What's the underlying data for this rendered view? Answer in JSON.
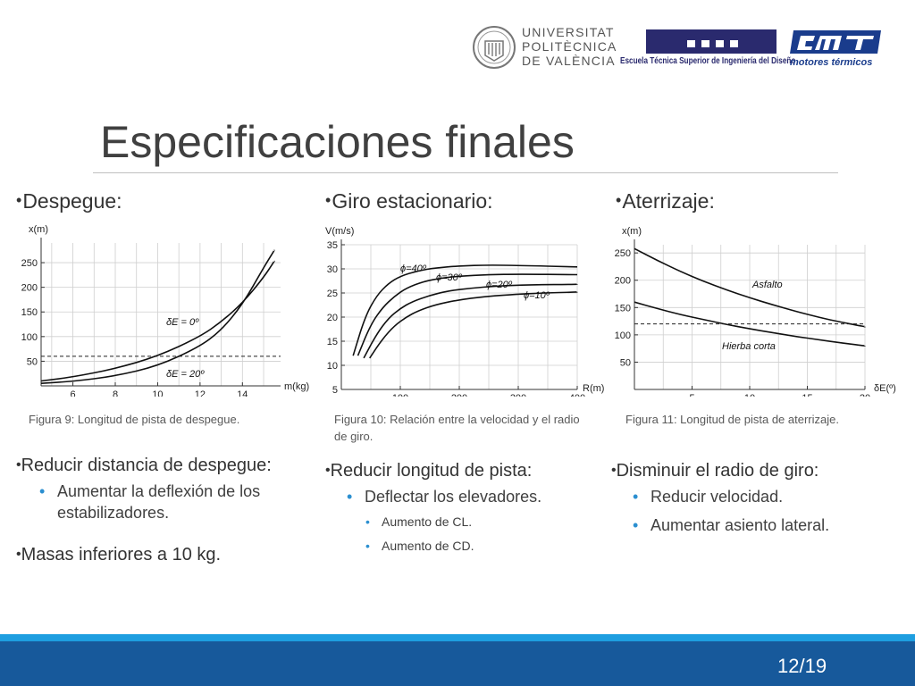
{
  "header": {
    "upv_lines": [
      "UNIVERSITAT",
      "POLITÈCNICA",
      "DE VALÈNCIA"
    ],
    "etsid_text": "Escuela Técnica Superior de Ingeniería del Diseño",
    "cmt_text": "motores térmicos"
  },
  "title": "Especificaciones finales",
  "sections": {
    "despegue": {
      "heading": "Despegue:",
      "caption": "Figura 9: Longitud de pista de despegue.",
      "bullets": [
        {
          "text": "Reducir distancia de despegue:",
          "sub": [
            "Aumentar la deflexión de los estabilizadores."
          ]
        },
        {
          "text": "Masas inferiores a 10 kg."
        }
      ]
    },
    "giro": {
      "heading": "Giro estacionario:",
      "caption": "Figura 10: Relación entre la velocidad y el radio de giro.",
      "bullets": [
        {
          "text": "Reducir longitud de pista:",
          "sub": [
            "Deflectar los elevadores."
          ],
          "subsub": [
            "Aumento de CL.",
            "Aumento de CD."
          ]
        }
      ]
    },
    "aterrizaje": {
      "heading": "Aterrizaje:",
      "caption": "Figura 11: Longitud de pista de aterrizaje.",
      "bullets": [
        {
          "text": "Disminuir el radio de giro:",
          "sub": [
            "Reducir velocidad.",
            "Aumentar asiento lateral."
          ]
        }
      ]
    }
  },
  "chart_data": [
    {
      "type": "line",
      "ylabel": "x(m)",
      "xlabel": "m(kg)",
      "xlim": [
        4.5,
        15.8
      ],
      "ylim": [
        0,
        290
      ],
      "xticks": [
        "6",
        "8",
        "10",
        "12",
        "14"
      ],
      "yticks": [
        "50",
        "100",
        "150",
        "200",
        "250"
      ],
      "grid": true,
      "series": [
        {
          "name": "δE = 0º",
          "x": [
            4.5,
            6,
            8,
            10,
            12,
            13,
            14,
            15,
            15.5
          ],
          "values": [
            10,
            18,
            35,
            60,
            100,
            130,
            168,
            220,
            253
          ]
        },
        {
          "name": "δE = 20º",
          "x": [
            4.5,
            6,
            8,
            10,
            12,
            13,
            14,
            15,
            15.5
          ],
          "values": [
            5,
            9,
            20,
            40,
            80,
            113,
            165,
            240,
            275
          ]
        }
      ],
      "reference_line": {
        "y": 60,
        "style": "dashed"
      }
    },
    {
      "type": "line",
      "ylabel": "V(m/s)",
      "xlabel": "R(m)",
      "xlim": [
        0,
        400
      ],
      "ylim": [
        5,
        35
      ],
      "xticks": [
        "100",
        "200",
        "300",
        "400"
      ],
      "yticks": [
        "5",
        "10",
        "15",
        "20",
        "25",
        "30",
        "35"
      ],
      "grid": true,
      "series": [
        {
          "name": "ϕ=40º",
          "x": [
            20,
            40,
            60,
            80,
            100,
            130,
            160,
            200,
            250,
            300,
            400
          ],
          "values": [
            12,
            20,
            24.5,
            27,
            28.5,
            29.6,
            30.2,
            30.6,
            30.8,
            30.7,
            30.4
          ]
        },
        {
          "name": "ϕ=30º",
          "x": [
            28,
            50,
            70,
            90,
            110,
            140,
            170,
            200,
            250,
            300,
            400
          ],
          "values": [
            12,
            18.5,
            22,
            24.3,
            26,
            27.4,
            28.1,
            28.5,
            28.8,
            28.9,
            28.8
          ]
        },
        {
          "name": "ϕ=20º",
          "x": [
            38,
            60,
            80,
            100,
            120,
            150,
            180,
            220,
            260,
            320,
            400
          ],
          "values": [
            11.5,
            16.5,
            19.8,
            21.8,
            23.2,
            24.5,
            25.4,
            26,
            26.4,
            26.7,
            26.8
          ]
        },
        {
          "name": "ϕ=10º",
          "x": [
            48,
            70,
            90,
            110,
            130,
            160,
            200,
            240,
            280,
            340,
            400
          ],
          "values": [
            11.5,
            15.5,
            18.2,
            20,
            21.3,
            22.6,
            23.6,
            24.2,
            24.6,
            25,
            25.2
          ]
        }
      ]
    },
    {
      "type": "line",
      "ylabel": "x(m)",
      "xlabel": "δE(º)",
      "xlim": [
        0,
        20
      ],
      "ylim": [
        0,
        265
      ],
      "xticks": [
        "5",
        "10",
        "15",
        "20"
      ],
      "yticks": [
        "50",
        "100",
        "150",
        "200",
        "250"
      ],
      "grid": true,
      "series": [
        {
          "name": "Asfalto",
          "x": [
            0,
            2,
            4,
            6,
            8,
            10,
            12,
            14,
            16,
            18,
            20
          ],
          "values": [
            258,
            236,
            216,
            198,
            182,
            168,
            155,
            143,
            132,
            123,
            115
          ]
        },
        {
          "name": "Hierba corta",
          "x": [
            0,
            2,
            4,
            6,
            8,
            10,
            12,
            14,
            16,
            18,
            20
          ],
          "values": [
            160,
            148,
            137,
            128,
            119,
            111,
            104,
            97,
            91,
            85,
            80
          ]
        }
      ],
      "reference_line": {
        "y": 120,
        "style": "dashed"
      }
    }
  ],
  "page_number": "12/19"
}
